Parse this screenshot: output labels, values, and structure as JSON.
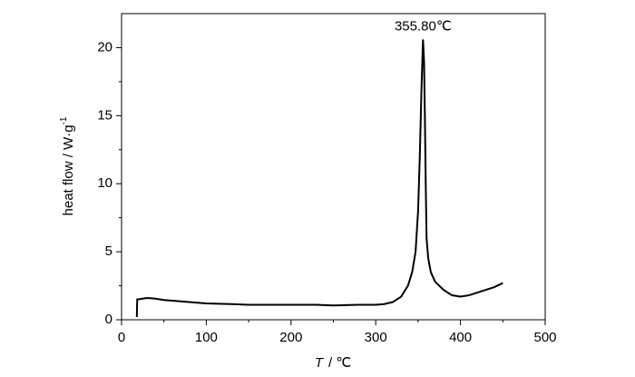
{
  "chart_data": {
    "type": "line",
    "xlabel_var": "T",
    "xlabel_unit": "/ ℃",
    "ylabel": "heat flow / W·g",
    "ylabel_sup": "-1",
    "annotation": {
      "text": "355.80℃",
      "x": 355.8,
      "y": 20.6
    },
    "x": [
      18,
      18.5,
      20,
      30,
      40,
      50,
      60,
      80,
      100,
      130,
      150,
      200,
      230,
      250,
      280,
      300,
      310,
      320,
      330,
      338,
      343,
      347,
      350,
      352,
      354,
      355.8,
      357,
      358,
      359,
      360,
      362,
      365,
      370,
      380,
      390,
      400,
      410,
      420,
      430,
      440,
      450
    ],
    "series": [
      {
        "name": "heat flow",
        "color": "#000000",
        "values": [
          0.2,
          1.5,
          1.5,
          1.6,
          1.55,
          1.45,
          1.4,
          1.3,
          1.2,
          1.15,
          1.1,
          1.1,
          1.1,
          1.05,
          1.1,
          1.1,
          1.15,
          1.3,
          1.7,
          2.5,
          3.5,
          5,
          8,
          12,
          17,
          20.6,
          19,
          15,
          10,
          6,
          4.5,
          3.5,
          2.8,
          2.2,
          1.8,
          1.7,
          1.8,
          2.0,
          2.2,
          2.4,
          2.7
        ]
      }
    ],
    "xlim": [
      0,
      500
    ],
    "xticks": [
      0,
      100,
      200,
      300,
      400,
      500
    ],
    "xticks_minor": [
      50,
      150,
      250,
      350,
      450
    ],
    "ylim": [
      0,
      22.5
    ],
    "yticks": [
      0,
      5,
      10,
      15,
      20
    ],
    "yticks_minor": [
      2.5,
      7.5,
      12.5,
      17.5
    ],
    "grid": false
  }
}
